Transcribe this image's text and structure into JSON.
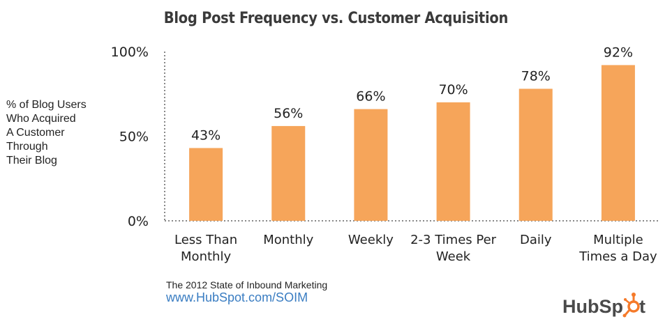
{
  "chart_data": {
    "type": "bar",
    "title": "Blog Post Frequency vs. Customer Acquisition",
    "ylabel_lines": [
      "% of Blog Users",
      "Who Acquired",
      "A Customer",
      "Through",
      "Their Blog"
    ],
    "categories": [
      [
        "Less Than",
        "Monthly"
      ],
      [
        "Monthly"
      ],
      [
        "Weekly"
      ],
      [
        "2-3 Times Per",
        "Week"
      ],
      [
        "Daily"
      ],
      [
        "Multiple",
        "Times a Day"
      ]
    ],
    "values": [
      43,
      56,
      66,
      70,
      78,
      92
    ],
    "data_labels": [
      "43%",
      "56%",
      "66%",
      "70%",
      "78%",
      "92%"
    ],
    "yticks": [
      0,
      50,
      100
    ],
    "ytick_labels": [
      "0%",
      "50%",
      "100%"
    ],
    "ylim": [
      0,
      100
    ],
    "bar_color": "#f6a55a",
    "grid": false
  },
  "footer": {
    "source": "The 2012 State of Inbound Marketing",
    "url": "www.HubSpot.com/SOIM"
  },
  "logo": {
    "text": "HubSpot",
    "accent_color": "#f57a2a"
  }
}
